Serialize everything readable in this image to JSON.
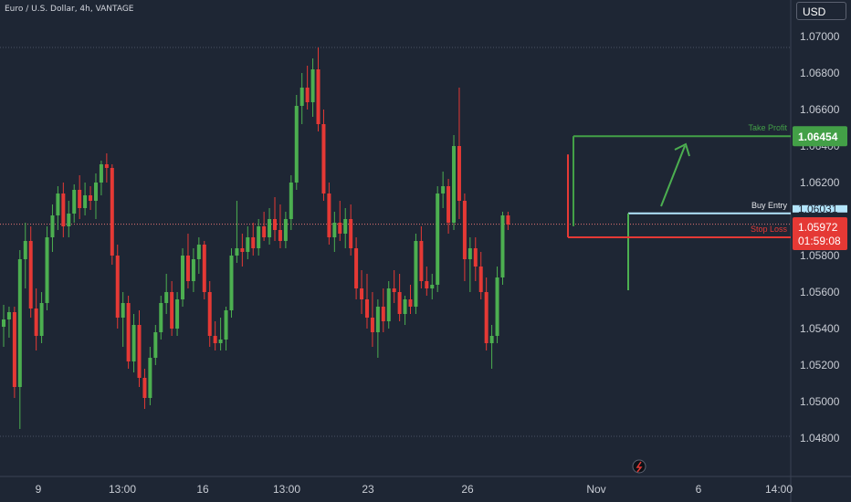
{
  "chart_title": "Euro / U.S. Dollar, 4h, VANTAGE",
  "currency": "USD",
  "colors": {
    "background": "#1e2634",
    "up": "#4caf50",
    "down": "#e53935",
    "take_profit": "#43a047",
    "stop_loss": "#e53935",
    "buy_entry": "#b3e5fc"
  },
  "chart_data": {
    "type": "candlestick",
    "title": "Euro / U.S. Dollar, 4h, VANTAGE",
    "xlabel": "",
    "ylabel": "",
    "y_tick_labels": [
      "1.07000",
      "1.06800",
      "1.06600",
      "1.06400",
      "1.06200",
      "1.05800",
      "1.05600",
      "1.05400",
      "1.05200",
      "1.05000",
      "1.04800"
    ],
    "x_tick_labels": [
      "9",
      "13:00",
      "16",
      "13:00",
      "23",
      "26",
      "Nov",
      "6",
      "14:00"
    ],
    "ylim": [
      1.0475,
      1.0715
    ],
    "grid": false,
    "candles": [
      [
        1.0541,
        1.0553,
        1.053,
        1.0545
      ],
      [
        1.0545,
        1.0552,
        1.0535,
        1.0549
      ],
      [
        1.0549,
        1.0552,
        1.0502,
        1.0508
      ],
      [
        1.0508,
        1.0583,
        1.0485,
        1.0578
      ],
      [
        1.0578,
        1.0598,
        1.0562,
        1.0588
      ],
      [
        1.0588,
        1.0596,
        1.0546,
        1.0551
      ],
      [
        1.0551,
        1.0562,
        1.0528,
        1.0536
      ],
      [
        1.0536,
        1.056,
        1.0532,
        1.0554
      ],
      [
        1.0554,
        1.0596,
        1.055,
        1.059
      ],
      [
        1.059,
        1.0608,
        1.0582,
        1.0602
      ],
      [
        1.0602,
        1.0618,
        1.0594,
        1.0614
      ],
      [
        1.0614,
        1.062,
        1.059,
        1.0596
      ],
      [
        1.0596,
        1.061,
        1.059,
        1.0603
      ],
      [
        1.0603,
        1.0619,
        1.0598,
        1.0616
      ],
      [
        1.0616,
        1.0624,
        1.06,
        1.0606
      ],
      [
        1.0606,
        1.062,
        1.0602,
        1.0613
      ],
      [
        1.0613,
        1.0618,
        1.0605,
        1.061
      ],
      [
        1.061,
        1.0625,
        1.06,
        1.062
      ],
      [
        1.062,
        1.0632,
        1.0613,
        1.063
      ],
      [
        1.063,
        1.0636,
        1.062,
        1.0628
      ],
      [
        1.0628,
        1.063,
        1.0575,
        1.058
      ],
      [
        1.058,
        1.0586,
        1.054,
        1.0546
      ],
      [
        1.0546,
        1.056,
        1.053,
        1.0554
      ],
      [
        1.0554,
        1.0558,
        1.0518,
        1.0522
      ],
      [
        1.0522,
        1.0548,
        1.0516,
        1.0542
      ],
      [
        1.0542,
        1.055,
        1.0508,
        1.0513
      ],
      [
        1.0513,
        1.0518,
        1.0496,
        1.0502
      ],
      [
        1.0502,
        1.053,
        1.0498,
        1.0524
      ],
      [
        1.0524,
        1.0542,
        1.052,
        1.0538
      ],
      [
        1.0538,
        1.0558,
        1.0534,
        1.0554
      ],
      [
        1.0554,
        1.057,
        1.0548,
        1.056
      ],
      [
        1.056,
        1.0566,
        1.0536,
        1.054
      ],
      [
        1.054,
        1.056,
        1.0536,
        1.0556
      ],
      [
        1.0556,
        1.0584,
        1.0552,
        1.058
      ],
      [
        1.058,
        1.0592,
        1.0562,
        1.0566
      ],
      [
        1.0566,
        1.0584,
        1.056,
        1.0578
      ],
      [
        1.0578,
        1.059,
        1.057,
        1.0586
      ],
      [
        1.0586,
        1.0588,
        1.0556,
        1.056
      ],
      [
        1.056,
        1.0566,
        1.053,
        1.0536
      ],
      [
        1.0536,
        1.0544,
        1.0528,
        1.0532
      ],
      [
        1.0532,
        1.0546,
        1.0528,
        1.0534
      ],
      [
        1.0534,
        1.0552,
        1.0528,
        1.055
      ],
      [
        1.055,
        1.0584,
        1.0546,
        1.058
      ],
      [
        1.058,
        1.061,
        1.0576,
        1.0584
      ],
      [
        1.0584,
        1.0592,
        1.0574,
        1.0582
      ],
      [
        1.0582,
        1.0596,
        1.0578,
        1.059
      ],
      [
        1.059,
        1.0598,
        1.058,
        1.0584
      ],
      [
        1.0584,
        1.06,
        1.058,
        1.0596
      ],
      [
        1.0596,
        1.0604,
        1.0588,
        1.059
      ],
      [
        1.059,
        1.0606,
        1.0586,
        1.06
      ],
      [
        1.06,
        1.0612,
        1.0588,
        1.0594
      ],
      [
        1.0594,
        1.0608,
        1.0584,
        1.0588
      ],
      [
        1.0588,
        1.0604,
        1.0584,
        1.06
      ],
      [
        1.06,
        1.0624,
        1.0594,
        1.062
      ],
      [
        1.062,
        1.0668,
        1.0616,
        1.0662
      ],
      [
        1.0662,
        1.068,
        1.0652,
        1.0672
      ],
      [
        1.0672,
        1.0684,
        1.066,
        1.0664
      ],
      [
        1.0664,
        1.0688,
        1.0656,
        1.0682
      ],
      [
        1.0682,
        1.0694,
        1.0648,
        1.0652
      ],
      [
        1.0652,
        1.066,
        1.061,
        1.0614
      ],
      [
        1.0614,
        1.062,
        1.0586,
        1.059
      ],
      [
        1.059,
        1.0604,
        1.0582,
        1.0598
      ],
      [
        1.0598,
        1.061,
        1.0588,
        1.0592
      ],
      [
        1.0592,
        1.0606,
        1.0584,
        1.06
      ],
      [
        1.06,
        1.0608,
        1.058,
        1.0584
      ],
      [
        1.0584,
        1.059,
        1.0556,
        1.0562
      ],
      [
        1.0562,
        1.0572,
        1.0548,
        1.0556
      ],
      [
        1.0556,
        1.057,
        1.054,
        1.0546
      ],
      [
        1.0546,
        1.056,
        1.053,
        1.0538
      ],
      [
        1.0538,
        1.0556,
        1.0524,
        1.0552
      ],
      [
        1.0552,
        1.0562,
        1.0538,
        1.0544
      ],
      [
        1.0544,
        1.0566,
        1.054,
        1.0562
      ],
      [
        1.0562,
        1.0572,
        1.0554,
        1.056
      ],
      [
        1.056,
        1.057,
        1.0544,
        1.0548
      ],
      [
        1.0548,
        1.0558,
        1.0542,
        1.0556
      ],
      [
        1.0556,
        1.0564,
        1.0548,
        1.0552
      ],
      [
        1.0552,
        1.0592,
        1.0548,
        1.0588
      ],
      [
        1.0588,
        1.0596,
        1.0562,
        1.0566
      ],
      [
        1.0566,
        1.0574,
        1.0558,
        1.0562
      ],
      [
        1.0562,
        1.057,
        1.0556,
        1.0564
      ],
      [
        1.0564,
        1.0618,
        1.056,
        1.0614
      ],
      [
        1.0614,
        1.0626,
        1.0606,
        1.0618
      ],
      [
        1.0618,
        1.0622,
        1.0592,
        1.0598
      ],
      [
        1.0598,
        1.0646,
        1.0594,
        1.064
      ],
      [
        1.064,
        1.0672,
        1.06,
        1.061
      ],
      [
        1.061,
        1.0614,
        1.0566,
        1.0578
      ],
      [
        1.0578,
        1.059,
        1.056,
        1.0584
      ],
      [
        1.0584,
        1.059,
        1.0566,
        1.0574
      ],
      [
        1.0574,
        1.0582,
        1.0556,
        1.056
      ],
      [
        1.056,
        1.0568,
        1.0528,
        1.0532
      ],
      [
        1.0532,
        1.0542,
        1.0518,
        1.0536
      ],
      [
        1.0536,
        1.0574,
        1.0532,
        1.0568
      ],
      [
        1.0568,
        1.0604,
        1.0564,
        1.0602
      ],
      [
        1.0602,
        1.0604,
        1.0594,
        1.0597
      ]
    ]
  },
  "price_labels": {
    "take_profit": {
      "text": "Take Profit",
      "price": 1.06454,
      "label": "1.06454"
    },
    "buy_entry": {
      "text": "Buy Entry",
      "price": 1.06031,
      "label": "1.06031"
    },
    "stop_loss": {
      "text": "Stop Loss",
      "price": 1.059
    },
    "current": {
      "price": 1.05972,
      "label": "1.05972",
      "countdown": "01:59:08"
    }
  }
}
